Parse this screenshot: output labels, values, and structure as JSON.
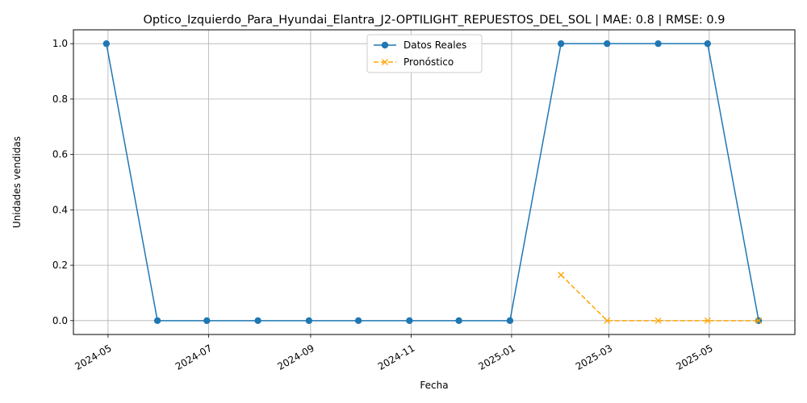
{
  "chart_data": {
    "type": "line",
    "title": "Optico_Izquierdo_Para_Hyundai_Elantra_J2-OPTILIGHT_REPUESTOS_DEL_SOL | MAE: 0.8 | RMSE: 0.9",
    "xlabel": "Fecha",
    "ylabel": "Unidades vendidas",
    "xlim": [
      "2024-04-10",
      "2025-06-22"
    ],
    "ylim": [
      -0.05,
      1.05
    ],
    "x_ticks": [
      "2024-05",
      "2024-07",
      "2024-09",
      "2024-11",
      "2025-01",
      "2025-03",
      "2025-05"
    ],
    "x_tick_dates": [
      "2024-05-01",
      "2024-07-01",
      "2024-09-01",
      "2024-11-01",
      "2025-01-01",
      "2025-03-01",
      "2025-05-01"
    ],
    "y_ticks": [
      0.0,
      0.2,
      0.4,
      0.6,
      0.8,
      1.0
    ],
    "grid": true,
    "legend_position": "top-center",
    "series": [
      {
        "name": "Datos Reales",
        "color": "#1f77b4",
        "style": "solid",
        "marker": "circle",
        "x": [
          "2024-04-30",
          "2024-05-31",
          "2024-06-30",
          "2024-07-31",
          "2024-08-31",
          "2024-09-30",
          "2024-10-31",
          "2024-11-30",
          "2024-12-31",
          "2025-01-31",
          "2025-02-28",
          "2025-03-31",
          "2025-04-30",
          "2025-05-31"
        ],
        "values": [
          1,
          0,
          0,
          0,
          0,
          0,
          0,
          0,
          0,
          1,
          1,
          1,
          1,
          0
        ]
      },
      {
        "name": "Pronóstico",
        "color": "#ffa500",
        "style": "dashed",
        "marker": "x",
        "x": [
          "2025-01-31",
          "2025-02-28",
          "2025-03-31",
          "2025-04-30",
          "2025-05-31"
        ],
        "values": [
          0.165,
          0.0,
          0.0,
          0.0,
          0.0
        ]
      }
    ]
  }
}
